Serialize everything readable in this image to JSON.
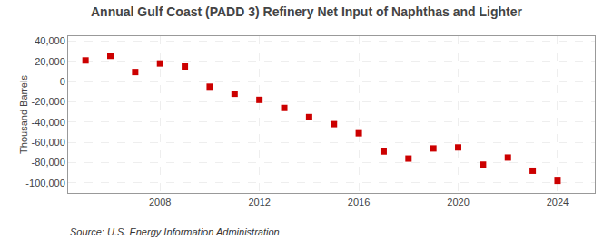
{
  "chart_data": {
    "type": "scatter",
    "title": "Annual Gulf Coast (PADD 3) Refinery Net Input of Naphthas and Lighter",
    "ylabel": "Thousand Barrels",
    "source": "Source: U.S. Energy Information Administration",
    "x": [
      2005,
      2006,
      2007,
      2008,
      2009,
      2010,
      2011,
      2012,
      2013,
      2014,
      2015,
      2016,
      2017,
      2018,
      2019,
      2020,
      2021,
      2022,
      2023,
      2024
    ],
    "values": [
      21000,
      25500,
      9500,
      18000,
      15000,
      -5000,
      -12000,
      -18000,
      -26000,
      -35000,
      -42000,
      -51000,
      -69000,
      -76000,
      -66000,
      -65000,
      -82000,
      -75000,
      -88000,
      -98000
    ],
    "color": "#cc0000",
    "marker": "square",
    "xlim": [
      2004.3,
      2025.5
    ],
    "xticks": [
      2008,
      2012,
      2016,
      2020,
      2024
    ],
    "ylim": [
      -110000,
      45000
    ],
    "yticks": [
      {
        "value": -100000,
        "label": "-100,000"
      },
      {
        "value": -80000,
        "label": "-80,000"
      },
      {
        "value": -60000,
        "label": "-60,000"
      },
      {
        "value": -40000,
        "label": "-40,000"
      },
      {
        "value": -20000,
        "label": "-20,000"
      },
      0,
      {
        "value": 20000,
        "label": "20,000"
      },
      {
        "value": 40000,
        "label": "40,000"
      }
    ],
    "grid": true
  }
}
